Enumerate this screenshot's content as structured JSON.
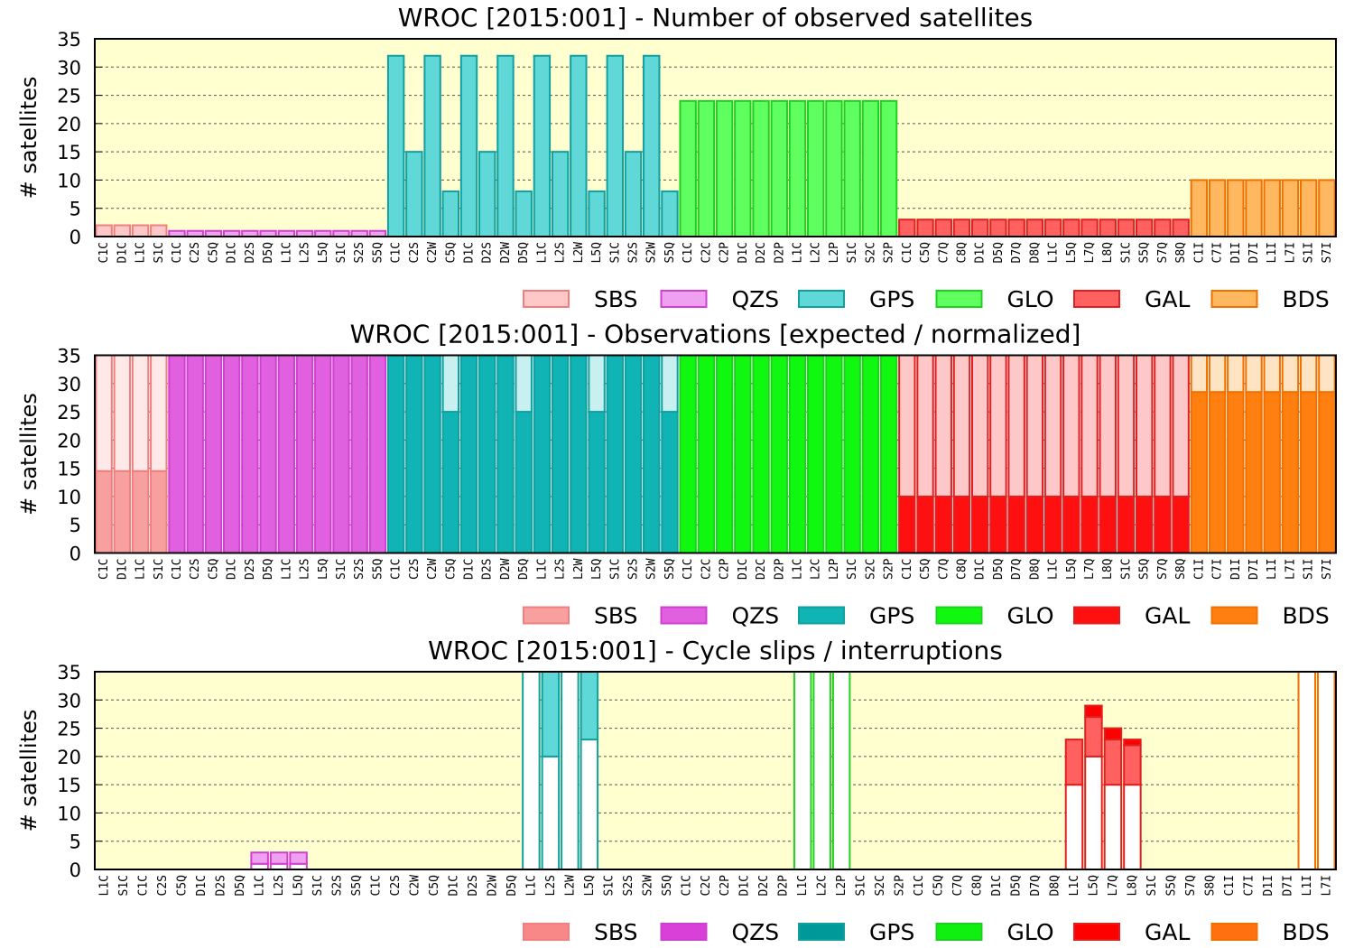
{
  "chart_data": [
    {
      "type": "bar",
      "title": "WROC [2015:001] - Number of observed satellites",
      "ylabel": "# satellites",
      "ylim": [
        0,
        35
      ],
      "yticks": [
        0,
        5,
        10,
        15,
        20,
        25,
        30,
        35
      ],
      "grid": true,
      "background": "#ffffd0",
      "series": [
        {
          "name": "SBS",
          "color": "#ffc8c8",
          "edge": "#f08080",
          "categories": [
            "C1C",
            "D1C",
            "L1C",
            "S1C"
          ],
          "segments": [
            {
              "color": "#ffc8c8",
              "values": [
                2,
                2,
                2,
                2
              ]
            }
          ]
        },
        {
          "name": "QZS",
          "color": "#f0a0f0",
          "edge": "#d040d0",
          "categories": [
            "C1C",
            "C2S",
            "C5Q",
            "D1C",
            "D2S",
            "D5Q",
            "L1C",
            "L2S",
            "L5Q",
            "S1C",
            "S2S",
            "S5Q"
          ],
          "segments": [
            {
              "color": "#f0a0f0",
              "values": [
                1,
                1,
                1,
                1,
                1,
                1,
                1,
                1,
                1,
                1,
                1,
                1
              ]
            }
          ]
        },
        {
          "name": "GPS",
          "color": "#60d8d8",
          "edge": "#10a0a0",
          "categories": [
            "C1C",
            "C2S",
            "C2W",
            "C5Q",
            "D1C",
            "D2S",
            "D2W",
            "D5Q",
            "L1C",
            "L2S",
            "L2W",
            "L5Q",
            "S1C",
            "S2S",
            "S2W",
            "S5Q"
          ],
          "segments": [
            {
              "color": "#60d8d8",
              "values": [
                32,
                15,
                32,
                8,
                32,
                15,
                32,
                8,
                32,
                15,
                32,
                8,
                32,
                15,
                32,
                8
              ]
            }
          ]
        },
        {
          "name": "GLO",
          "color": "#60ff60",
          "edge": "#20d020",
          "categories": [
            "C1C",
            "C2C",
            "C2P",
            "D1C",
            "D2C",
            "D2P",
            "L1C",
            "L2C",
            "L2P",
            "S1C",
            "S2C",
            "S2P"
          ],
          "segments": [
            {
              "color": "#60ff60",
              "values": [
                24,
                24,
                24,
                24,
                24,
                24,
                24,
                24,
                24,
                24,
                24,
                24
              ]
            }
          ]
        },
        {
          "name": "GAL",
          "color": "#ff6060",
          "edge": "#e02020",
          "categories": [
            "C1C",
            "C5Q",
            "C7Q",
            "C8Q",
            "D1C",
            "D5Q",
            "D7Q",
            "D8Q",
            "L1C",
            "L5Q",
            "L7Q",
            "L8Q",
            "S1C",
            "S5Q",
            "S7Q",
            "S8Q"
          ],
          "segments": [
            {
              "color": "#ff6060",
              "values": [
                3,
                3,
                3,
                3,
                3,
                3,
                3,
                3,
                3,
                3,
                3,
                3,
                3,
                3,
                3,
                3
              ]
            }
          ]
        },
        {
          "name": "BDS",
          "color": "#ffb860",
          "edge": "#f07000",
          "categories": [
            "C1I",
            "C7I",
            "D1I",
            "D7I",
            "L1I",
            "L7I",
            "S1I",
            "S7I"
          ],
          "segments": [
            {
              "color": "#ffb860",
              "values": [
                10,
                10,
                10,
                10,
                10,
                10,
                10,
                10
              ]
            }
          ]
        }
      ]
    },
    {
      "type": "bar",
      "title": "WROC [2015:001] - Observations [expected / normalized]",
      "ylabel": "# satellites",
      "ylim": [
        0,
        35
      ],
      "yticks": [
        0,
        5,
        10,
        15,
        20,
        25,
        30,
        35
      ],
      "grid": true,
      "background": "#ffffff",
      "series": [
        {
          "name": "SBS",
          "color": "#f8a0a0",
          "edge": "#f08080",
          "categories": [
            "C1C",
            "D1C",
            "L1C",
            "S1C"
          ],
          "segments": [
            {
              "color": "#f8a0a0",
              "values": [
                14.5,
                14.5,
                14.5,
                14.5
              ]
            },
            {
              "color": "#ffe8e8",
              "values": [
                20.5,
                20.5,
                20.5,
                20.5
              ]
            }
          ]
        },
        {
          "name": "QZS",
          "color": "#e060e0",
          "edge": "#d040d0",
          "categories": [
            "C1C",
            "C2S",
            "C5Q",
            "D1C",
            "D2S",
            "D5Q",
            "L1C",
            "L2S",
            "L5Q",
            "S1C",
            "S2S",
            "S5Q"
          ],
          "segments": [
            {
              "color": "#e060e0",
              "values": [
                35,
                35,
                35,
                35,
                35,
                35,
                35,
                35,
                35,
                35,
                35,
                35
              ]
            },
            {
              "color": "#f8c8f8",
              "values": [
                0,
                0,
                0,
                0,
                0,
                0,
                0,
                0,
                0,
                0,
                0,
                0
              ]
            }
          ]
        },
        {
          "name": "GPS",
          "color": "#10b4b4",
          "edge": "#10a0a0",
          "categories": [
            "C1C",
            "C2S",
            "C2W",
            "C5Q",
            "D1C",
            "D2S",
            "D2W",
            "D5Q",
            "L1C",
            "L2S",
            "L2W",
            "L5Q",
            "S1C",
            "S2S",
            "S2W",
            "S5Q"
          ],
          "segments": [
            {
              "color": "#10b4b4",
              "values": [
                35,
                35,
                35,
                25,
                35,
                35,
                35,
                25,
                35,
                35,
                35,
                25,
                35,
                35,
                35,
                25
              ]
            },
            {
              "color": "#c8f0f0",
              "values": [
                0,
                0,
                0,
                10,
                0,
                0,
                0,
                10,
                0,
                0,
                0,
                10,
                0,
                0,
                0,
                10
              ]
            }
          ]
        },
        {
          "name": "GLO",
          "color": "#10f810",
          "edge": "#20d020",
          "categories": [
            "C1C",
            "C2C",
            "C2P",
            "D1C",
            "D2C",
            "D2P",
            "L1C",
            "L2C",
            "L2P",
            "S1C",
            "S2C",
            "S2P"
          ],
          "segments": [
            {
              "color": "#10f810",
              "values": [
                35,
                35,
                35,
                35,
                35,
                35,
                35,
                35,
                35,
                35,
                35,
                35
              ]
            },
            {
              "color": "#c8ffc8",
              "values": [
                0,
                0,
                0,
                0,
                0,
                0,
                0,
                0,
                0,
                0,
                0,
                0
              ]
            }
          ]
        },
        {
          "name": "GAL",
          "color": "#ff1010",
          "edge": "#e02020",
          "categories": [
            "C1C",
            "C5Q",
            "C7Q",
            "C8Q",
            "D1C",
            "D5Q",
            "D7Q",
            "D8Q",
            "L1C",
            "L5Q",
            "L7Q",
            "L8Q",
            "S1C",
            "S5Q",
            "S7Q",
            "S8Q"
          ],
          "segments": [
            {
              "color": "#ff1010",
              "values": [
                10,
                10,
                10,
                10,
                10,
                10,
                10,
                10,
                10,
                10,
                10,
                10,
                10,
                10,
                10,
                10
              ]
            },
            {
              "color": "#ffc8c8",
              "values": [
                25,
                25,
                25,
                25,
                25,
                25,
                25,
                25,
                25,
                25,
                25,
                25,
                25,
                25,
                25,
                25
              ]
            }
          ]
        },
        {
          "name": "BDS",
          "color": "#ff8010",
          "edge": "#f07000",
          "categories": [
            "C1I",
            "C7I",
            "D1I",
            "D7I",
            "L1I",
            "L7I",
            "S1I",
            "S7I"
          ],
          "segments": [
            {
              "color": "#ff8010",
              "values": [
                28.5,
                28.5,
                28.5,
                28.5,
                28.5,
                28.5,
                28.5,
                28.5
              ]
            },
            {
              "color": "#ffe4c4",
              "values": [
                6.5,
                6.5,
                6.5,
                6.5,
                6.5,
                6.5,
                6.5,
                6.5
              ]
            }
          ]
        }
      ]
    },
    {
      "type": "bar",
      "title": "WROC [2015:001] - Cycle slips / interruptions",
      "ylabel": "# satellites",
      "ylim": [
        0,
        35
      ],
      "yticks": [
        0,
        5,
        10,
        15,
        20,
        25,
        30,
        35
      ],
      "grid": true,
      "background": "#ffffd0",
      "series": [
        {
          "name": "SBS",
          "color": "#f88888",
          "edge": "#f08080",
          "categories": [
            "L1C",
            "S1C"
          ],
          "segments": [
            {
              "color": "#ffffff",
              "values": [
                0,
                0
              ]
            },
            {
              "color": "#ffc8c8",
              "values": [
                0,
                0
              ]
            },
            {
              "color": "#f88888",
              "values": [
                0,
                0
              ]
            }
          ]
        },
        {
          "name": "QZS",
          "color": "#d840d8",
          "edge": "#d040d0",
          "categories": [
            "C1C",
            "C2S",
            "C5Q",
            "D1C",
            "D2S",
            "D5Q",
            "L1C",
            "L2S",
            "L5Q",
            "S1C",
            "S2S",
            "S5Q"
          ],
          "segments": [
            {
              "color": "#ffffff",
              "values": [
                0,
                0,
                0,
                0,
                0,
                0,
                1,
                1,
                1,
                0,
                0,
                0
              ]
            },
            {
              "color": "#f0a0f0",
              "values": [
                0,
                0,
                0,
                0,
                0,
                0,
                2,
                2,
                2,
                0,
                0,
                0
              ]
            },
            {
              "color": "#d840d8",
              "values": [
                0,
                0,
                0,
                0,
                0,
                0,
                0,
                0,
                0,
                0,
                0,
                0
              ]
            }
          ]
        },
        {
          "name": "GPS",
          "color": "#009999",
          "edge": "#10a0a0",
          "categories": [
            "C1C",
            "C2S",
            "C2W",
            "C5Q",
            "D1C",
            "D2S",
            "D2W",
            "D5Q",
            "L1C",
            "L2S",
            "L2W",
            "L5Q",
            "S1C",
            "S2S",
            "S2W",
            "S5Q"
          ],
          "segments": [
            {
              "color": "#ffffff",
              "values": [
                0,
                0,
                0,
                0,
                0,
                0,
                0,
                0,
                35,
                20,
                35,
                23,
                0,
                0,
                0,
                0
              ]
            },
            {
              "color": "#60d8d8",
              "values": [
                0,
                0,
                0,
                0,
                0,
                0,
                0,
                0,
                0,
                15,
                0,
                12,
                0,
                0,
                0,
                0
              ]
            },
            {
              "color": "#009999",
              "values": [
                0,
                0,
                0,
                0,
                0,
                0,
                0,
                0,
                0,
                0,
                0,
                0,
                0,
                0,
                0,
                0
              ]
            }
          ]
        },
        {
          "name": "GLO",
          "color": "#10f010",
          "edge": "#20d020",
          "categories": [
            "C1C",
            "C2C",
            "C2P",
            "D1C",
            "D2C",
            "D2P",
            "L1C",
            "L2C",
            "L2P",
            "S1C",
            "S2C",
            "S2P"
          ],
          "segments": [
            {
              "color": "#ffffff",
              "values": [
                0,
                0,
                0,
                0,
                0,
                0,
                35,
                35,
                35,
                0,
                0,
                0
              ]
            },
            {
              "color": "#60ff60",
              "values": [
                0,
                0,
                0,
                0,
                0,
                0,
                0,
                0,
                0,
                0,
                0,
                0
              ]
            },
            {
              "color": "#10f010",
              "values": [
                0,
                0,
                0,
                0,
                0,
                0,
                0,
                0,
                0,
                0,
                0,
                0
              ]
            }
          ]
        },
        {
          "name": "GAL",
          "color": "#ff0000",
          "edge": "#e02020",
          "categories": [
            "C1C",
            "C5Q",
            "C7Q",
            "C8Q",
            "D1C",
            "D5Q",
            "D7Q",
            "D8Q",
            "L1C",
            "L5Q",
            "L7Q",
            "L8Q",
            "S1C",
            "S5Q",
            "S7Q",
            "S8Q"
          ],
          "segments": [
            {
              "color": "#ffffff",
              "values": [
                0,
                0,
                0,
                0,
                0,
                0,
                0,
                0,
                15,
                20,
                15,
                15,
                0,
                0,
                0,
                0
              ]
            },
            {
              "color": "#ff6060",
              "values": [
                0,
                0,
                0,
                0,
                0,
                0,
                0,
                0,
                8,
                7,
                8,
                7,
                0,
                0,
                0,
                0
              ]
            },
            {
              "color": "#ff0000",
              "values": [
                0,
                0,
                0,
                0,
                0,
                0,
                0,
                0,
                0,
                2,
                2,
                1,
                0,
                0,
                0,
                0
              ]
            }
          ]
        },
        {
          "name": "BDS",
          "color": "#ff7010",
          "edge": "#f07000",
          "categories": [
            "C1I",
            "C7I",
            "D1I",
            "D7I",
            "L1I",
            "L7I"
          ],
          "segments": [
            {
              "color": "#ffffff",
              "values": [
                0,
                0,
                0,
                0,
                35,
                35
              ]
            },
            {
              "color": "#ffb860",
              "values": [
                0,
                0,
                0,
                0,
                0,
                0
              ]
            },
            {
              "color": "#ff7010",
              "values": [
                0,
                0,
                0,
                0,
                0,
                0
              ]
            }
          ]
        }
      ]
    }
  ]
}
